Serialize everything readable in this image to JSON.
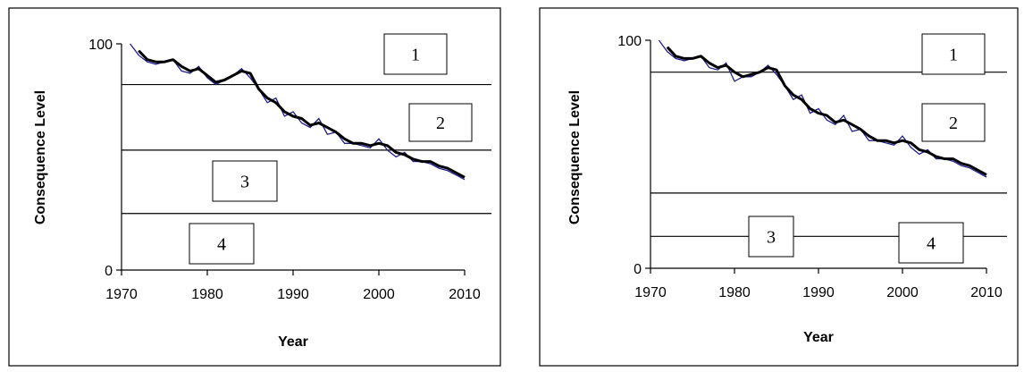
{
  "chart_data": [
    {
      "type": "line",
      "title": "",
      "xlabel": "Year",
      "ylabel": "Consequence Level",
      "xlim": [
        1970,
        2010
      ],
      "ylim": [
        0,
        100
      ],
      "x_ticks": [
        "1970",
        "1980",
        "1990",
        "2000",
        "2010"
      ],
      "y_ticks": [
        "0",
        "100"
      ],
      "thresholds": [
        82,
        53,
        25
      ],
      "zones": [
        "1",
        "2",
        "3",
        "4"
      ],
      "x": [
        1971,
        1972,
        1973,
        1974,
        1975,
        1976,
        1977,
        1978,
        1979,
        1980,
        1981,
        1982,
        1983,
        1984,
        1985,
        1986,
        1987,
        1988,
        1989,
        1990,
        1991,
        1992,
        1993,
        1994,
        1995,
        1996,
        1997,
        1998,
        1999,
        2000,
        2001,
        2002,
        2003,
        2004,
        2005,
        2006,
        2007,
        2008,
        2009,
        2010
      ],
      "series": [
        {
          "style": "raw",
          "values": [
            100,
            95,
            92,
            91,
            92,
            93,
            88,
            87,
            90,
            85,
            82,
            84,
            86,
            89,
            85,
            80,
            74,
            76,
            68,
            70,
            65,
            63,
            67,
            60,
            61,
            56,
            56,
            55,
            54,
            58,
            53,
            50,
            52,
            48,
            48,
            47,
            45,
            44,
            42,
            40
          ]
        },
        {
          "style": "smooth",
          "values": [
            null,
            97,
            93,
            92,
            92,
            93,
            90,
            88,
            89,
            86,
            83,
            84,
            86,
            88,
            87,
            80,
            76,
            74,
            70,
            68,
            67,
            64,
            65,
            63,
            61,
            58,
            56,
            56,
            55,
            56,
            55,
            52,
            51,
            49,
            48,
            48,
            46,
            45,
            43,
            41
          ]
        }
      ]
    },
    {
      "type": "line",
      "title": "",
      "xlabel": "Year",
      "ylabel": "Consequence Level",
      "xlim": [
        1970,
        2010
      ],
      "ylim": [
        0,
        100
      ],
      "x_ticks": [
        "1970",
        "1980",
        "1990",
        "2000",
        "2010"
      ],
      "y_ticks": [
        "0",
        "100"
      ],
      "thresholds": [
        86,
        33,
        14
      ],
      "zones": [
        "1",
        "2",
        "3",
        "4"
      ],
      "x": [
        1971,
        1972,
        1973,
        1974,
        1975,
        1976,
        1977,
        1978,
        1979,
        1980,
        1981,
        1982,
        1983,
        1984,
        1985,
        1986,
        1987,
        1988,
        1989,
        1990,
        1991,
        1992,
        1993,
        1994,
        1995,
        1996,
        1997,
        1998,
        1999,
        2000,
        2001,
        2002,
        2003,
        2004,
        2005,
        2006,
        2007,
        2008,
        2009,
        2010
      ],
      "series": [
        {
          "style": "raw",
          "values": [
            100,
            95,
            92,
            91,
            92,
            93,
            88,
            87,
            90,
            82,
            84,
            84,
            86,
            89,
            85,
            80,
            74,
            76,
            68,
            70,
            65,
            63,
            67,
            60,
            61,
            56,
            56,
            55,
            54,
            58,
            53,
            50,
            52,
            48,
            48,
            47,
            45,
            44,
            42,
            40
          ]
        },
        {
          "style": "smooth",
          "values": [
            null,
            97,
            93,
            92,
            92,
            93,
            90,
            88,
            89,
            86,
            84,
            85,
            86,
            88,
            87,
            80,
            76,
            74,
            70,
            68,
            67,
            64,
            65,
            63,
            61,
            58,
            56,
            56,
            55,
            56,
            55,
            52,
            51,
            49,
            48,
            48,
            46,
            45,
            43,
            41
          ]
        }
      ]
    }
  ]
}
